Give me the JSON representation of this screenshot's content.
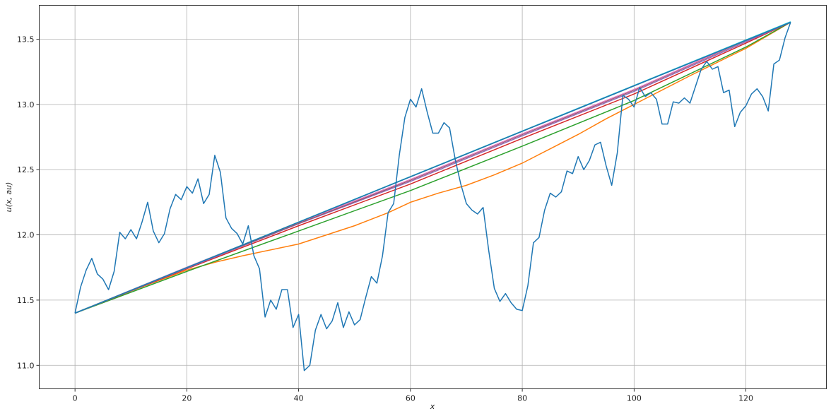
{
  "chart_data": {
    "type": "line",
    "title": "",
    "xlabel": "x",
    "ylabel": "u(x, au)",
    "xlim": [
      -6.4,
      134.4
    ],
    "ylim": [
      10.82,
      13.76
    ],
    "xticks": [
      0,
      20,
      40,
      60,
      80,
      100,
      120
    ],
    "yticks": [
      11.0,
      11.5,
      12.0,
      12.5,
      13.0,
      13.5
    ],
    "grid": true,
    "legend": "none",
    "series": [
      {
        "color": "#ff7f0e",
        "x": [
          0,
          10,
          20,
          25,
          30,
          40,
          50,
          56,
          60,
          65,
          70,
          75,
          80,
          85,
          90,
          95,
          100,
          110,
          120,
          128
        ],
        "y": [
          11.4,
          11.57,
          11.73,
          11.79,
          11.84,
          11.93,
          12.07,
          12.17,
          12.25,
          12.32,
          12.38,
          12.46,
          12.55,
          12.66,
          12.77,
          12.89,
          13.0,
          13.22,
          13.43,
          13.63
        ]
      },
      {
        "color": "#2ca02c",
        "x": [
          0,
          20,
          40,
          60,
          80,
          100,
          120,
          128
        ],
        "y": [
          11.4,
          11.72,
          12.03,
          12.34,
          12.68,
          13.03,
          13.44,
          13.63
        ]
      },
      {
        "color": "#d62728",
        "x": [
          0,
          20,
          40,
          60,
          80,
          100,
          120,
          128
        ],
        "y": [
          11.4,
          11.74,
          12.07,
          12.39,
          12.74,
          13.08,
          13.47,
          13.63
        ]
      },
      {
        "color": "#9467bd",
        "x": [
          0,
          20,
          40,
          60,
          80,
          100,
          120,
          128
        ],
        "y": [
          11.4,
          11.745,
          12.085,
          12.41,
          12.76,
          13.1,
          13.48,
          13.63
        ]
      },
      {
        "color": "#8c564b",
        "x": [
          0,
          20,
          40,
          60,
          80,
          100,
          120,
          128
        ],
        "y": [
          11.4,
          11.75,
          12.09,
          12.42,
          12.77,
          13.11,
          13.49,
          13.63
        ]
      },
      {
        "color": "#e377c2",
        "x": [
          0,
          20,
          40,
          60,
          80,
          100,
          120,
          128
        ],
        "y": [
          11.4,
          11.752,
          12.095,
          12.425,
          12.775,
          13.115,
          13.493,
          13.63
        ]
      },
      {
        "color": "#7f7f7f",
        "x": [
          0,
          128
        ],
        "y": [
          11.4,
          13.63
        ]
      },
      {
        "color": "#bcbd22",
        "x": [
          0,
          128
        ],
        "y": [
          11.4,
          13.632
        ]
      },
      {
        "color": "#17becf",
        "x": [
          0,
          128
        ],
        "y": [
          11.4,
          13.634
        ]
      },
      {
        "color": "#1f77b4",
        "x": [
          0,
          128
        ],
        "y": [
          11.4,
          13.63
        ]
      },
      {
        "color": "#1f77b4",
        "x": [
          0,
          1,
          2,
          3,
          4,
          5,
          6,
          7,
          8,
          9,
          10,
          11,
          12,
          13,
          14,
          15,
          16,
          17,
          18,
          19,
          20,
          21,
          22,
          23,
          24,
          25,
          26,
          27,
          28,
          29,
          30,
          31,
          32,
          33,
          34,
          35,
          36,
          37,
          38,
          39,
          40,
          41,
          42,
          43,
          44,
          45,
          46,
          47,
          48,
          49,
          50,
          51,
          52,
          53,
          54,
          55,
          56,
          57,
          58,
          59,
          60,
          61,
          62,
          63,
          64,
          65,
          66,
          67,
          68,
          69,
          70,
          71,
          72,
          73,
          74,
          75,
          76,
          77,
          78,
          79,
          80,
          81,
          82,
          83,
          84,
          85,
          86,
          87,
          88,
          89,
          90,
          91,
          92,
          93,
          94,
          95,
          96,
          97,
          98,
          99,
          100,
          101,
          102,
          103,
          104,
          105,
          106,
          107,
          108,
          109,
          110,
          111,
          112,
          113,
          114,
          115,
          116,
          117,
          118,
          119,
          120,
          121,
          122,
          123,
          124,
          125,
          126,
          127,
          128
        ],
        "y": [
          11.4,
          11.6,
          11.73,
          11.82,
          11.7,
          11.66,
          11.58,
          11.72,
          12.02,
          11.97,
          12.04,
          11.97,
          12.1,
          12.25,
          12.03,
          11.94,
          12.01,
          12.2,
          12.31,
          12.27,
          12.37,
          12.32,
          12.43,
          12.24,
          12.31,
          12.61,
          12.48,
          12.13,
          12.05,
          12.01,
          11.93,
          12.07,
          11.84,
          11.74,
          11.37,
          11.5,
          11.43,
          11.58,
          11.58,
          11.29,
          11.39,
          10.96,
          11.0,
          11.27,
          11.39,
          11.28,
          11.34,
          11.48,
          11.29,
          11.41,
          11.31,
          11.35,
          11.52,
          11.68,
          11.63,
          11.84,
          12.17,
          12.24,
          12.61,
          12.9,
          13.04,
          12.98,
          13.12,
          12.94,
          12.78,
          12.78,
          12.86,
          12.82,
          12.58,
          12.39,
          12.24,
          12.19,
          12.16,
          12.21,
          11.88,
          11.59,
          11.49,
          11.55,
          11.48,
          11.43,
          11.42,
          11.61,
          11.94,
          11.98,
          12.19,
          12.32,
          12.29,
          12.33,
          12.49,
          12.47,
          12.6,
          12.5,
          12.57,
          12.69,
          12.71,
          12.53,
          12.38,
          12.63,
          13.07,
          13.04,
          12.98,
          13.13,
          13.06,
          13.09,
          13.04,
          12.85,
          12.85,
          13.02,
          13.01,
          13.05,
          13.01,
          13.14,
          13.27,
          13.33,
          13.27,
          13.29,
          13.09,
          13.11,
          12.83,
          12.94,
          12.99,
          13.08,
          13.12,
          13.06,
          12.95,
          13.31,
          13.34,
          13.51,
          13.63
        ]
      }
    ]
  }
}
